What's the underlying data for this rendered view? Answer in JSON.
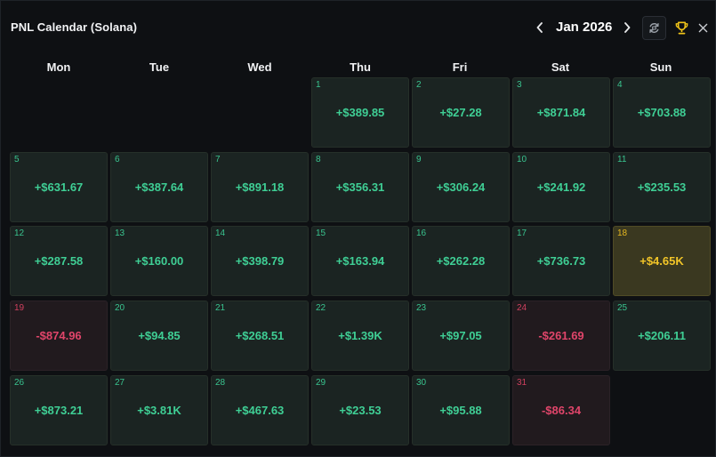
{
  "header": {
    "title": "PNL Calendar (Solana)",
    "month_label": "Jan 2026"
  },
  "weekdays": [
    "Mon",
    "Tue",
    "Wed",
    "Thu",
    "Fri",
    "Sat",
    "Sun"
  ],
  "colors": {
    "positive": "#3fcf95",
    "negative": "#e0456a",
    "highlight": "#f2c528",
    "background": "#0e1013"
  },
  "calendar": {
    "leading_blank_days": 3,
    "days": [
      {
        "day": "1",
        "pnl": "+$389.85",
        "status": "pos"
      },
      {
        "day": "2",
        "pnl": "+$27.28",
        "status": "pos"
      },
      {
        "day": "3",
        "pnl": "+$871.84",
        "status": "pos"
      },
      {
        "day": "4",
        "pnl": "+$703.88",
        "status": "pos"
      },
      {
        "day": "5",
        "pnl": "+$631.67",
        "status": "pos"
      },
      {
        "day": "6",
        "pnl": "+$387.64",
        "status": "pos"
      },
      {
        "day": "7",
        "pnl": "+$891.18",
        "status": "pos"
      },
      {
        "day": "8",
        "pnl": "+$356.31",
        "status": "pos"
      },
      {
        "day": "9",
        "pnl": "+$306.24",
        "status": "pos"
      },
      {
        "day": "10",
        "pnl": "+$241.92",
        "status": "pos"
      },
      {
        "day": "11",
        "pnl": "+$235.53",
        "status": "pos"
      },
      {
        "day": "12",
        "pnl": "+$287.58",
        "status": "pos"
      },
      {
        "day": "13",
        "pnl": "+$160.00",
        "status": "pos"
      },
      {
        "day": "14",
        "pnl": "+$398.79",
        "status": "pos"
      },
      {
        "day": "15",
        "pnl": "+$163.94",
        "status": "pos"
      },
      {
        "day": "16",
        "pnl": "+$262.28",
        "status": "pos"
      },
      {
        "day": "17",
        "pnl": "+$736.73",
        "status": "pos"
      },
      {
        "day": "18",
        "pnl": "+$4.65K",
        "status": "hi"
      },
      {
        "day": "19",
        "pnl": "-$874.96",
        "status": "neg"
      },
      {
        "day": "20",
        "pnl": "+$94.85",
        "status": "pos"
      },
      {
        "day": "21",
        "pnl": "+$268.51",
        "status": "pos"
      },
      {
        "day": "22",
        "pnl": "+$1.39K",
        "status": "pos"
      },
      {
        "day": "23",
        "pnl": "+$97.05",
        "status": "pos"
      },
      {
        "day": "24",
        "pnl": "-$261.69",
        "status": "neg"
      },
      {
        "day": "25",
        "pnl": "+$206.11",
        "status": "pos"
      },
      {
        "day": "26",
        "pnl": "+$873.21",
        "status": "pos"
      },
      {
        "day": "27",
        "pnl": "+$3.81K",
        "status": "pos"
      },
      {
        "day": "28",
        "pnl": "+$467.63",
        "status": "pos"
      },
      {
        "day": "29",
        "pnl": "+$23.53",
        "status": "pos"
      },
      {
        "day": "30",
        "pnl": "+$95.88",
        "status": "pos"
      },
      {
        "day": "31",
        "pnl": "-$86.34",
        "status": "neg"
      }
    ]
  },
  "icons": {
    "prev": "chevron-left-icon",
    "next": "chevron-right-icon",
    "refresh": "refresh-icon",
    "trophy": "trophy-icon",
    "close": "close-icon"
  }
}
